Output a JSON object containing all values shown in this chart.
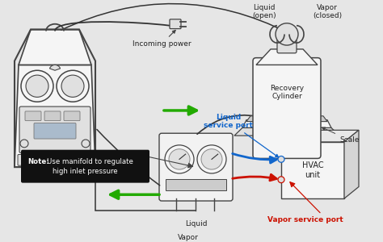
{
  "background_color": "#e8e8e8",
  "labels": {
    "incoming_power": "Incoming power",
    "recovery_cylinder": "Recovery\nCylinder",
    "scale": "Scale",
    "liquid_open": "Liquid\n(open)",
    "vapor_closed": "Vapor\n(closed)",
    "hvac_unit": "HVAC\nunit",
    "liquid_service_port": "Liquid\nservice port",
    "vapor_service_port": "Vapor service port",
    "liquid": "Liquid",
    "vapor": "Vapor",
    "note_bold": "Note:",
    "note_rest": " Use manifold to regulate\nhigh inlet pressure"
  },
  "colors": {
    "background": "#e6e6e6",
    "outline": "#444444",
    "fill_light": "#f5f5f5",
    "fill_medium": "#e0e0e0",
    "fill_dark": "#cccccc",
    "arrow_green": "#22aa00",
    "arrow_blue": "#1166cc",
    "arrow_red": "#cc1100",
    "text_blue": "#1166cc",
    "text_red": "#cc1100",
    "text_black": "#222222",
    "note_bg": "#111111",
    "note_text": "#ffffff",
    "line_color": "#555555",
    "wire_color": "#333333"
  },
  "font_sizes": {
    "small": 5.5,
    "medium": 6.5,
    "note": 6.2
  }
}
